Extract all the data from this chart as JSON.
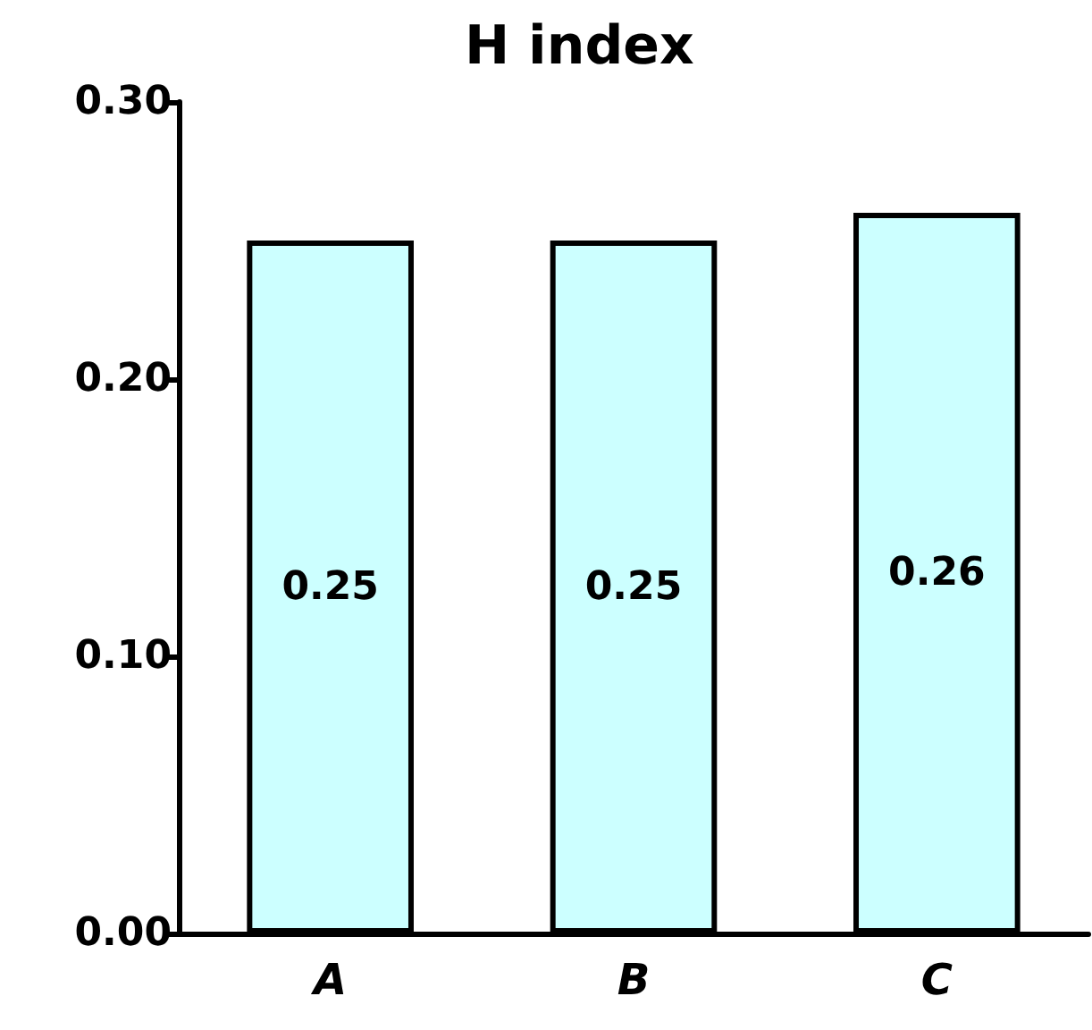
{
  "chart_data": {
    "type": "bar",
    "title": "H index",
    "categories": [
      "A",
      "B",
      "C"
    ],
    "values": [
      0.25,
      0.25,
      0.26
    ],
    "color": "#ccffff",
    "ylim": [
      0,
      0.3
    ],
    "yticks": [
      {
        "value": 0,
        "label": "0.00"
      },
      {
        "value": 0.1,
        "label": "0.10"
      },
      {
        "value": 0.2,
        "label": "0.20"
      },
      {
        "value": 0.3,
        "label": "0.30"
      }
    ],
    "data_labels": true,
    "grid": false
  }
}
